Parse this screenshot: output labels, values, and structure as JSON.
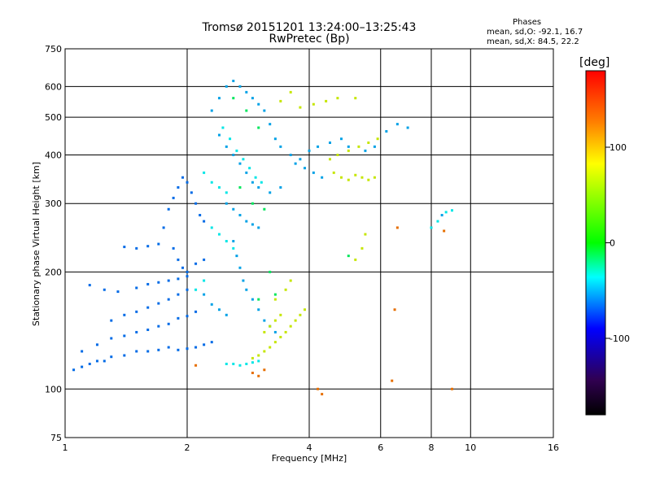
{
  "chart_data": {
    "type": "scatter",
    "title": "Tromsø 20151201 13:24:00–13:25:43",
    "subtitle": "RwPretec (Bp)",
    "xlabel": "Frequency [MHz]",
    "ylabel": "Stationary phase Virtual Height [km]",
    "x_scale": "log",
    "y_scale": "log",
    "xlim": [
      1,
      16
    ],
    "ylim": [
      75,
      750
    ],
    "x_ticks": [
      1,
      2,
      4,
      6,
      8,
      10,
      16
    ],
    "y_ticks": [
      75,
      100,
      200,
      300,
      400,
      500,
      600,
      750
    ],
    "grid": true,
    "colorbar": {
      "label": "[deg]",
      "range": [
        -180,
        180
      ],
      "ticks": [
        100,
        0,
        -100
      ],
      "colors": [
        "#ff0000",
        "#ff8000",
        "#ffff00",
        "#00ff00",
        "#00ffff",
        "#0000ff",
        "#200040",
        "#000000"
      ]
    },
    "stats": {
      "header": "Phases",
      "line_o": "mean, sd,O: -92.1, 16.7",
      "line_x": "mean, sd,X:  84.5, 22.2"
    },
    "series": [
      {
        "phase": -115,
        "points": [
          [
            1.05,
            112
          ],
          [
            1.1,
            114
          ],
          [
            1.15,
            116
          ],
          [
            1.2,
            118
          ],
          [
            1.25,
            118
          ],
          [
            1.3,
            121
          ],
          [
            1.4,
            122
          ],
          [
            1.5,
            125
          ],
          [
            1.6,
            125
          ],
          [
            1.7,
            126
          ],
          [
            1.8,
            128
          ],
          [
            1.9,
            126
          ],
          [
            2.0,
            127
          ],
          [
            2.1,
            128
          ],
          [
            2.2,
            130
          ],
          [
            2.3,
            132
          ],
          [
            1.1,
            125
          ],
          [
            1.2,
            130
          ],
          [
            1.3,
            135
          ],
          [
            1.4,
            137
          ],
          [
            1.5,
            140
          ],
          [
            1.6,
            142
          ],
          [
            1.7,
            145
          ],
          [
            1.8,
            147
          ],
          [
            1.9,
            152
          ],
          [
            2.0,
            154
          ],
          [
            2.1,
            158
          ],
          [
            1.3,
            150
          ],
          [
            1.4,
            155
          ],
          [
            1.5,
            158
          ],
          [
            1.6,
            162
          ],
          [
            1.7,
            166
          ],
          [
            1.8,
            170
          ],
          [
            1.9,
            175
          ],
          [
            2.0,
            180
          ],
          [
            1.15,
            185
          ],
          [
            1.25,
            180
          ],
          [
            1.35,
            178
          ],
          [
            1.5,
            182
          ],
          [
            1.6,
            186
          ],
          [
            1.7,
            188
          ],
          [
            1.8,
            190
          ],
          [
            1.9,
            192
          ],
          [
            2.0,
            195
          ],
          [
            1.4,
            232
          ],
          [
            1.5,
            230
          ],
          [
            1.6,
            233
          ],
          [
            1.7,
            236
          ],
          [
            1.75,
            260
          ],
          [
            1.8,
            290
          ],
          [
            1.85,
            310
          ],
          [
            1.9,
            330
          ],
          [
            1.95,
            350
          ],
          [
            2.0,
            340
          ],
          [
            2.05,
            320
          ],
          [
            2.1,
            300
          ],
          [
            2.15,
            280
          ],
          [
            2.2,
            270
          ],
          [
            1.85,
            230
          ],
          [
            1.9,
            215
          ],
          [
            1.95,
            205
          ],
          [
            2.0,
            200
          ],
          [
            2.1,
            210
          ],
          [
            2.2,
            215
          ]
        ]
      },
      {
        "phase": -95,
        "points": [
          [
            2.3,
            520
          ],
          [
            2.4,
            560
          ],
          [
            2.5,
            600
          ],
          [
            2.6,
            620
          ],
          [
            2.7,
            600
          ],
          [
            2.8,
            580
          ],
          [
            2.9,
            560
          ],
          [
            3.0,
            540
          ],
          [
            3.1,
            520
          ],
          [
            3.2,
            480
          ],
          [
            3.3,
            440
          ],
          [
            3.4,
            420
          ],
          [
            3.6,
            400
          ],
          [
            3.8,
            390
          ],
          [
            4.0,
            410
          ],
          [
            4.2,
            420
          ],
          [
            4.5,
            430
          ],
          [
            4.8,
            440
          ],
          [
            5.0,
            420
          ],
          [
            5.5,
            410
          ],
          [
            5.8,
            420
          ],
          [
            2.4,
            450
          ],
          [
            2.5,
            420
          ],
          [
            2.6,
            400
          ],
          [
            2.7,
            380
          ],
          [
            2.8,
            360
          ],
          [
            2.9,
            340
          ],
          [
            3.0,
            330
          ],
          [
            3.2,
            320
          ],
          [
            3.4,
            330
          ],
          [
            2.5,
            300
          ],
          [
            2.6,
            290
          ],
          [
            2.7,
            280
          ],
          [
            2.8,
            270
          ],
          [
            2.9,
            265
          ],
          [
            3.0,
            260
          ],
          [
            2.6,
            240
          ],
          [
            2.65,
            220
          ],
          [
            2.7,
            205
          ],
          [
            2.75,
            190
          ],
          [
            2.8,
            180
          ],
          [
            2.9,
            170
          ],
          [
            3.0,
            160
          ],
          [
            3.1,
            150
          ],
          [
            3.2,
            145
          ],
          [
            3.3,
            140
          ],
          [
            2.2,
            175
          ],
          [
            2.3,
            165
          ],
          [
            2.4,
            160
          ],
          [
            2.5,
            155
          ],
          [
            3.7,
            380
          ],
          [
            3.9,
            370
          ],
          [
            4.1,
            360
          ],
          [
            4.3,
            350
          ],
          [
            6.2,
            460
          ],
          [
            6.6,
            480
          ],
          [
            7.0,
            470
          ],
          [
            8.5,
            280
          ]
        ]
      },
      {
        "phase": -70,
        "points": [
          [
            2.45,
            470
          ],
          [
            2.55,
            440
          ],
          [
            2.65,
            410
          ],
          [
            2.75,
            390
          ],
          [
            2.85,
            370
          ],
          [
            2.95,
            350
          ],
          [
            3.05,
            340
          ],
          [
            2.2,
            360
          ],
          [
            2.3,
            340
          ],
          [
            2.4,
            330
          ],
          [
            2.5,
            320
          ],
          [
            2.3,
            260
          ],
          [
            2.4,
            250
          ],
          [
            2.5,
            240
          ],
          [
            2.6,
            230
          ],
          [
            2.7,
            115
          ],
          [
            2.8,
            116
          ],
          [
            2.9,
            117
          ],
          [
            3.0,
            118
          ],
          [
            2.5,
            116
          ],
          [
            2.6,
            116
          ],
          [
            8.0,
            260
          ],
          [
            8.3,
            270
          ],
          [
            8.7,
            285
          ],
          [
            9.0,
            288
          ],
          [
            2.1,
            180
          ],
          [
            2.2,
            190
          ]
        ]
      },
      {
        "phase": -20,
        "points": [
          [
            2.6,
            560
          ],
          [
            2.8,
            520
          ],
          [
            3.0,
            470
          ],
          [
            2.7,
            330
          ],
          [
            2.9,
            300
          ],
          [
            3.1,
            290
          ],
          [
            5.0,
            220
          ],
          [
            3.2,
            200
          ],
          [
            3.0,
            170
          ],
          [
            3.3,
            175
          ]
        ]
      },
      {
        "phase": 85,
        "points": [
          [
            2.9,
            120
          ],
          [
            3.0,
            122
          ],
          [
            3.1,
            125
          ],
          [
            3.2,
            128
          ],
          [
            3.3,
            132
          ],
          [
            3.4,
            136
          ],
          [
            3.5,
            140
          ],
          [
            3.6,
            145
          ],
          [
            3.7,
            150
          ],
          [
            3.8,
            155
          ],
          [
            3.9,
            160
          ],
          [
            3.1,
            140
          ],
          [
            3.2,
            145
          ],
          [
            3.3,
            150
          ],
          [
            3.4,
            155
          ],
          [
            4.6,
            360
          ],
          [
            4.8,
            350
          ],
          [
            5.0,
            345
          ],
          [
            5.2,
            355
          ],
          [
            5.4,
            350
          ],
          [
            5.6,
            345
          ],
          [
            5.8,
            350
          ],
          [
            4.5,
            390
          ],
          [
            4.7,
            400
          ],
          [
            5.0,
            410
          ],
          [
            5.3,
            420
          ],
          [
            5.6,
            430
          ],
          [
            5.9,
            440
          ],
          [
            3.8,
            530
          ],
          [
            4.1,
            540
          ],
          [
            4.4,
            550
          ],
          [
            4.7,
            560
          ],
          [
            5.2,
            560
          ],
          [
            3.6,
            580
          ],
          [
            3.4,
            550
          ],
          [
            3.3,
            170
          ],
          [
            3.5,
            180
          ],
          [
            3.6,
            190
          ],
          [
            5.5,
            250
          ],
          [
            5.4,
            230
          ],
          [
            5.2,
            215
          ]
        ]
      },
      {
        "phase": 140,
        "points": [
          [
            2.9,
            110
          ],
          [
            3.0,
            108
          ],
          [
            3.1,
            112
          ],
          [
            4.2,
            100
          ],
          [
            4.3,
            97
          ],
          [
            6.6,
            260
          ],
          [
            6.5,
            160
          ],
          [
            6.4,
            105
          ],
          [
            8.6,
            255
          ],
          [
            9.0,
            100
          ],
          [
            2.1,
            115
          ]
        ]
      }
    ]
  }
}
